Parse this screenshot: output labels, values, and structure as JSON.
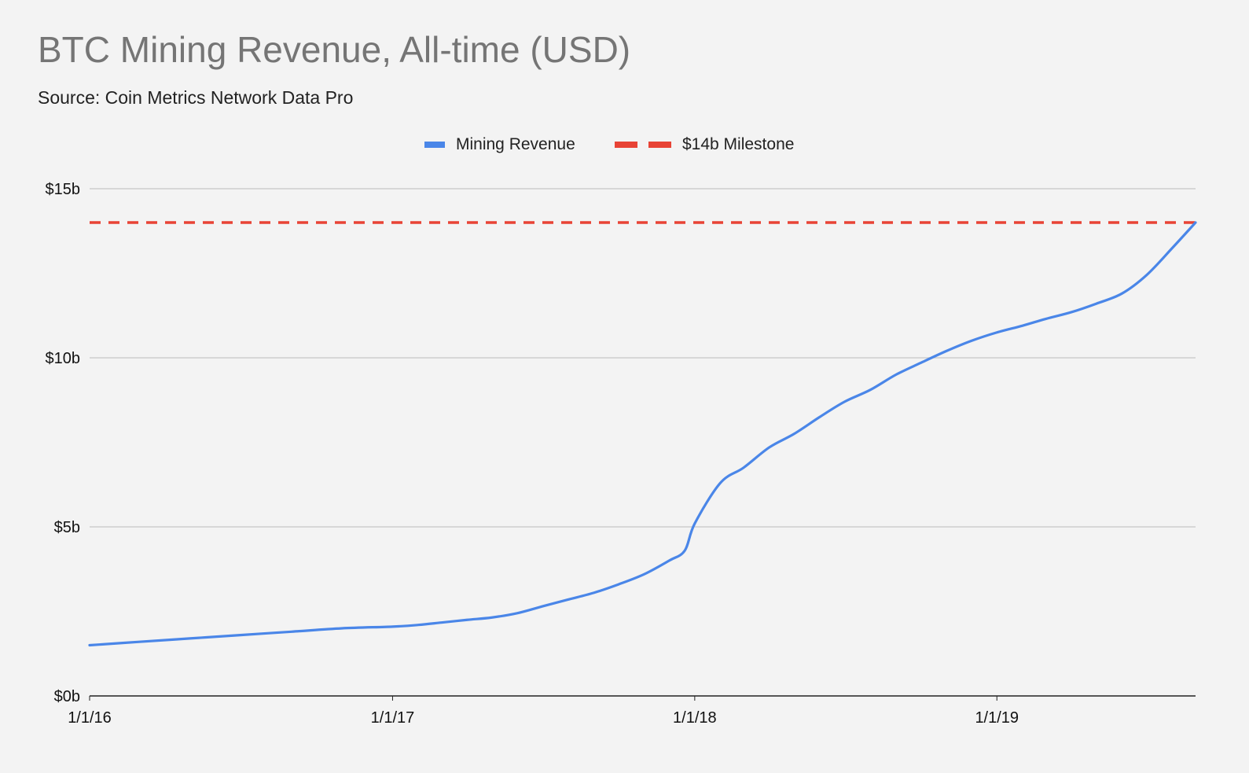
{
  "chart_data": {
    "type": "line",
    "title": "BTC Mining Revenue, All-time (USD)",
    "subtitle": "Source: Coin Metrics Network Data Pro",
    "xlabel": "",
    "ylabel": "",
    "x_tick_labels": [
      "1/1/16",
      "1/1/17",
      "1/1/18",
      "1/1/19"
    ],
    "y_tick_labels": [
      "$0b",
      "$5b",
      "$10b",
      "$15b"
    ],
    "y_ticks": [
      0,
      5,
      10,
      15
    ],
    "ylim": [
      0,
      15
    ],
    "xlim": [
      "2016-01-01",
      "2019-08-29"
    ],
    "grid": true,
    "legend_position": "top-center",
    "colors": {
      "mining_revenue": "#4a86e8",
      "milestone": "#e84335",
      "grid": "#c6c6c6",
      "axis": "#222222",
      "background": "#f3f3f3"
    },
    "series": [
      {
        "name": "Mining Revenue",
        "style": "solid",
        "x": [
          "2016-01-01",
          "2016-03-01",
          "2016-05-01",
          "2016-07-01",
          "2016-09-01",
          "2016-11-01",
          "2017-01-01",
          "2017-02-01",
          "2017-03-01",
          "2017-04-01",
          "2017-05-01",
          "2017-06-01",
          "2017-07-01",
          "2017-08-01",
          "2017-09-01",
          "2017-10-01",
          "2017-11-01",
          "2017-12-01",
          "2017-12-20",
          "2018-01-01",
          "2018-02-01",
          "2018-03-01",
          "2018-04-01",
          "2018-05-01",
          "2018-06-01",
          "2018-07-01",
          "2018-08-01",
          "2018-09-01",
          "2018-10-01",
          "2018-11-01",
          "2018-12-01",
          "2019-01-01",
          "2019-02-01",
          "2019-03-01",
          "2019-04-01",
          "2019-05-01",
          "2019-06-01",
          "2019-07-01",
          "2019-08-01",
          "2019-08-29"
        ],
        "values": [
          1.5,
          1.6,
          1.7,
          1.8,
          1.9,
          2.0,
          2.05,
          2.1,
          2.17,
          2.25,
          2.32,
          2.45,
          2.65,
          2.85,
          3.05,
          3.3,
          3.6,
          4.0,
          4.3,
          5.1,
          6.3,
          6.75,
          7.35,
          7.75,
          8.25,
          8.7,
          9.05,
          9.5,
          9.85,
          10.2,
          10.5,
          10.75,
          10.95,
          11.15,
          11.35,
          11.6,
          11.9,
          12.45,
          13.25,
          14.0
        ]
      },
      {
        "name": "$14b Milestone",
        "style": "dashed",
        "x": [
          "2016-01-01",
          "2019-08-29"
        ],
        "values": [
          14,
          14
        ]
      }
    ]
  }
}
